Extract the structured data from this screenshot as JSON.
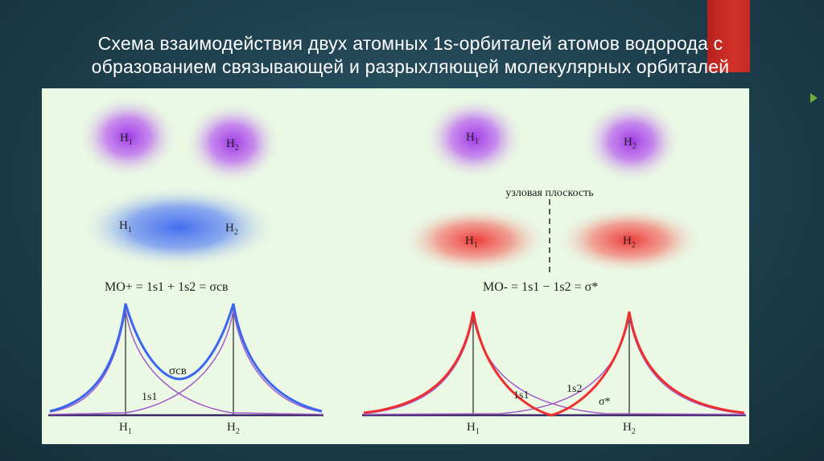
{
  "slide": {
    "title_line1": "Схема  взаимодействия  двух  атомных  1s-орбиталей атомов водорода с",
    "title_line2": "образованием связывающей и разрыхляющей молекулярных орбиталей"
  },
  "figure": {
    "atom_labels": {
      "h1": "H",
      "h1_sub": "1",
      "h2": "H",
      "h2_sub": "2"
    },
    "nodal_plane_label": "узловая плоскость",
    "bonding_formula": "MO+ = 1s1 + 1s2 = σсв",
    "antibonding_formula": "MO- = 1s1 − 1s2 = σ*",
    "bonding_curve_labels": {
      "sigma": "σсв",
      "s1": "1s1"
    },
    "antibonding_curve_labels": {
      "s1": "1s1",
      "s2": "1s2",
      "sigma": "σ*"
    },
    "colors": {
      "atom_purple": "#9b30e6",
      "bonding_blue": "#3a66f0",
      "antibonding_red": "#ee2f2f",
      "component_purple": "#a35cc8",
      "axis": "#3a2a6a"
    }
  }
}
